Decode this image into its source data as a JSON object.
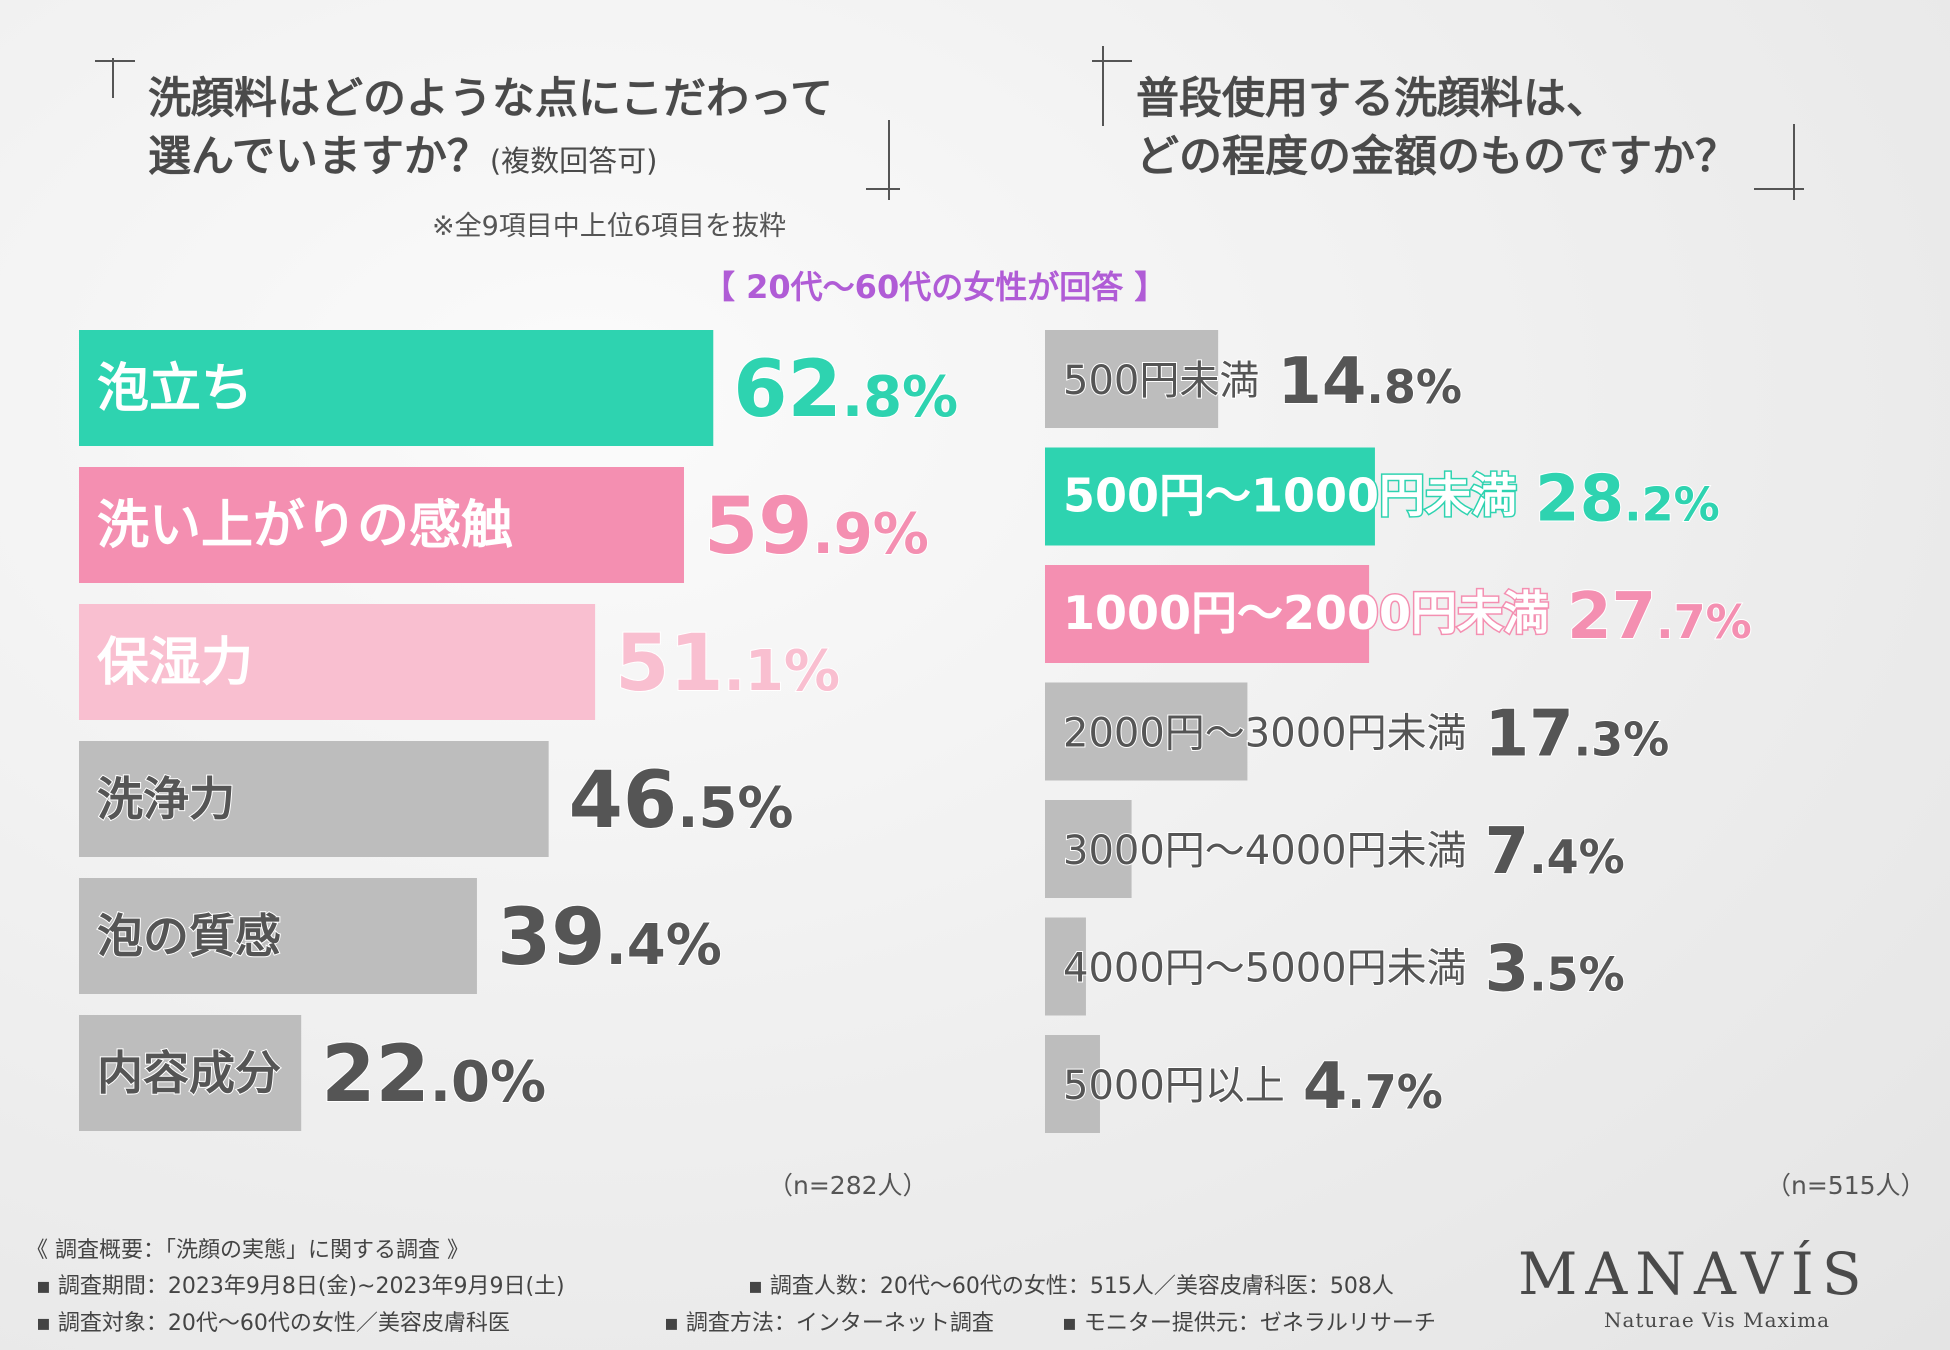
{
  "left_title": {
    "line1": "洗顔料はどのような点にこだわって",
    "line2": "選んでいますか？",
    "line2_small": "(複数回答可)",
    "note": "※全9項目中上位6項目を抜粋"
  },
  "right_title": {
    "line1": "普段使用する洗顔料は、",
    "line2": "どの程度の金額のものですか？"
  },
  "subtitle": "【 20代〜60代の女性が回答 】",
  "chart_data": [
    {
      "type": "bar",
      "orientation": "horizontal",
      "categories": [
        "泡立ち",
        "洗い上がりの感触",
        "保湿力",
        "洗浄力",
        "泡の質感",
        "内容成分"
      ],
      "values": [
        62.8,
        59.9,
        51.1,
        46.5,
        39.4,
        22.0
      ],
      "value_labels": [
        "62.8%",
        "59.9%",
        "51.1%",
        "46.5%",
        "39.4%",
        "22.0%"
      ],
      "colors": [
        "#2ed3b0",
        "#f48fb1",
        "#f9bfd0",
        "#bdbdbd",
        "#bdbdbd",
        "#bdbdbd"
      ],
      "label_colors": [
        "#2ed3b0",
        "#f48fb1",
        "#f9bfd0",
        "#555555",
        "#555555",
        "#555555"
      ],
      "n_label": "（n=282人）"
    },
    {
      "type": "bar",
      "orientation": "horizontal",
      "categories": [
        "500円未満",
        "500円〜1000円未満",
        "1000円〜2000円未満",
        "2000円〜3000円未満",
        "3000円〜4000円未満",
        "4000円〜5000円未満",
        "5000円以上"
      ],
      "values": [
        14.8,
        28.2,
        27.7,
        17.3,
        7.4,
        3.5,
        4.7
      ],
      "value_labels": [
        "14.8%",
        "28.2%",
        "27.7%",
        "17.3%",
        "7.4%",
        "3.5%",
        "4.7%"
      ],
      "colors": [
        "#bdbdbd",
        "#2ed3b0",
        "#f48fb1",
        "#bdbdbd",
        "#bdbdbd",
        "#bdbdbd",
        "#bdbdbd"
      ],
      "label_colors": [
        "#555555",
        "#2ed3b0",
        "#f48fb1",
        "#555555",
        "#555555",
        "#555555",
        "#555555"
      ],
      "n_label": "（n=515人）"
    }
  ],
  "survey": {
    "heading": "《 調査概要：「洗顔の実態」に関する調査 》",
    "period": "▪ 調査期間：2023年9月8日(金)~2023年9月9日(土)",
    "target": "▪ 調査対象：20代〜60代の女性／美容皮膚科医",
    "count": "▪ 調査人数：20代〜60代の女性：515人／美容皮膚科医：508人",
    "method": "▪ 調査方法：インターネット調査",
    "provider": "▪ モニター提供元：ゼネラルリサーチ"
  },
  "logo": {
    "name": "MANAVÍS",
    "tagline": "Naturae Vis Maxima"
  }
}
